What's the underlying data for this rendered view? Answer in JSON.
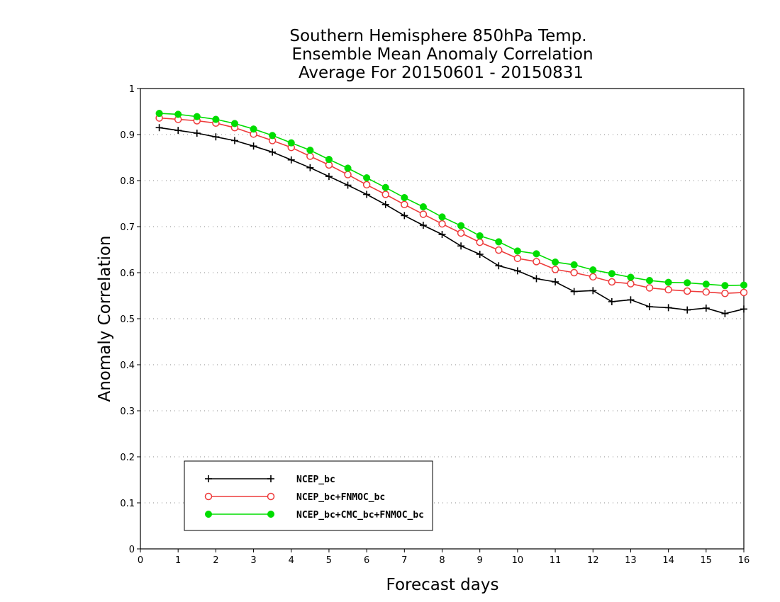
{
  "chart_data": {
    "type": "line",
    "title_lines": [
      "Southern Hemisphere 850hPa Temp.",
      "Ensemble Mean Anomaly Correlation",
      "Average For 20150601 - 20150831"
    ],
    "xlabel": "Forecast days",
    "ylabel": "Anomaly Correlation",
    "xlim": [
      0,
      16
    ],
    "ylim": [
      0,
      1
    ],
    "xticks": [
      "0",
      "1",
      "2",
      "3",
      "4",
      "5",
      "6",
      "7",
      "8",
      "9",
      "10",
      "11",
      "12",
      "13",
      "14",
      "15",
      "16"
    ],
    "yticks": [
      "0",
      "0.1",
      "0.2",
      "0.3",
      "0.4",
      "0.5",
      "0.6",
      "0.7",
      "0.8",
      "0.9",
      "1"
    ],
    "grid": "dotted horizontal",
    "legend_position": "bottom-left",
    "x": [
      0.5,
      1,
      1.5,
      2,
      2.5,
      3,
      3.5,
      4,
      4.5,
      5,
      5.5,
      6,
      6.5,
      7,
      7.5,
      8,
      8.5,
      9,
      9.5,
      10,
      10.5,
      11,
      11.5,
      12,
      12.5,
      13,
      13.5,
      14,
      14.5,
      15,
      15.5,
      16
    ],
    "series": [
      {
        "name": "NCEP_bc",
        "color": "#000000",
        "marker": "plus",
        "values": [
          0.915,
          0.909,
          0.903,
          0.895,
          0.887,
          0.875,
          0.862,
          0.845,
          0.828,
          0.809,
          0.79,
          0.77,
          0.748,
          0.724,
          0.703,
          0.683,
          0.658,
          0.64,
          0.615,
          0.604,
          0.587,
          0.58,
          0.559,
          0.561,
          0.537,
          0.541,
          0.526,
          0.524,
          0.519,
          0.523,
          0.511,
          0.521
        ]
      },
      {
        "name": "NCEP_bc+FNMOC_bc",
        "color": "#ee3b3b",
        "marker": "open-circle",
        "values": [
          0.936,
          0.933,
          0.93,
          0.925,
          0.915,
          0.901,
          0.887,
          0.872,
          0.853,
          0.834,
          0.813,
          0.791,
          0.77,
          0.748,
          0.727,
          0.706,
          0.686,
          0.666,
          0.649,
          0.631,
          0.624,
          0.607,
          0.6,
          0.591,
          0.58,
          0.576,
          0.567,
          0.563,
          0.56,
          0.558,
          0.555,
          0.557
        ]
      },
      {
        "name": "NCEP_bc+CMC_bc+FNMOC_bc",
        "color": "#00dd00",
        "marker": "filled-circle",
        "values": [
          0.946,
          0.944,
          0.939,
          0.933,
          0.924,
          0.912,
          0.898,
          0.882,
          0.866,
          0.846,
          0.827,
          0.806,
          0.785,
          0.763,
          0.743,
          0.721,
          0.702,
          0.68,
          0.667,
          0.647,
          0.641,
          0.623,
          0.617,
          0.606,
          0.598,
          0.59,
          0.583,
          0.579,
          0.578,
          0.575,
          0.572,
          0.573
        ]
      }
    ]
  }
}
